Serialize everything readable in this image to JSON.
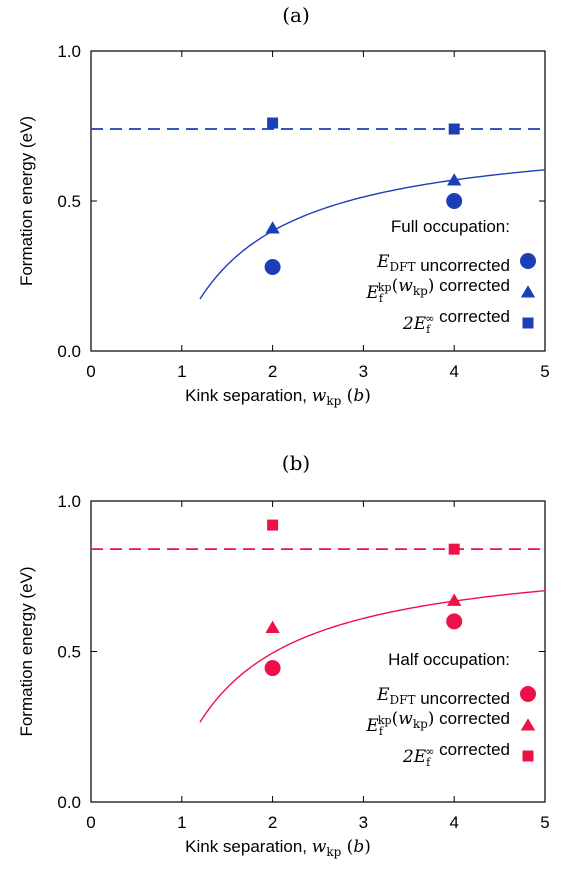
{
  "chart_data": [
    {
      "panel_label": "(a)",
      "type": "scatter",
      "xlabel": "Kink separation, ",
      "xlabel_var": "w",
      "xlabel_sub": "kp",
      "xlabel_unit": "b",
      "ylabel": "Formation energy (eV)",
      "xlim": [
        0,
        5
      ],
      "ylim": [
        0,
        1.0
      ],
      "xticks": [
        0,
        1,
        2,
        3,
        4,
        5
      ],
      "yticks": [
        0.0,
        0.5,
        1.0
      ],
      "xtick_labels": [
        "0",
        "1",
        "2",
        "3",
        "4",
        "5"
      ],
      "ytick_labels": [
        "0.0",
        "0.5",
        "1.0"
      ],
      "color": "#1c3fb8",
      "legend_title": "Full occupation:",
      "series": [
        {
          "name": "E_DFT uncorrected",
          "marker": "circle",
          "x": [
            2,
            4
          ],
          "y": [
            0.28,
            0.5
          ]
        },
        {
          "name": "E_f^kp(w_kp) corrected",
          "marker": "triangle",
          "x": [
            2,
            4
          ],
          "y": [
            0.41,
            0.57
          ]
        },
        {
          "name": "2E_f^∞ corrected",
          "marker": "square",
          "x": [
            2,
            4
          ],
          "y": [
            0.76,
            0.74
          ]
        }
      ],
      "fit_curve": {
        "x_start": 1.2,
        "x_end": 5,
        "asymptote": 0.74,
        "coefficient": 0.68
      },
      "reference_line": {
        "y": 0.74,
        "style": "dashed"
      },
      "legend": [
        {
          "sym": "E",
          "sub": "DFT",
          "sup": "",
          "paren": "",
          "suffix": " uncorrected",
          "marker": "circle"
        },
        {
          "sym": "E",
          "sub": "f",
          "sup": "kp",
          "paren": "w",
          "paren_sub": "kp",
          "suffix": " corrected",
          "marker": "triangle"
        },
        {
          "sym": "2E",
          "sub": "f",
          "sup": "∞",
          "paren": "",
          "suffix": " corrected",
          "marker": "square"
        }
      ]
    },
    {
      "panel_label": "(b)",
      "type": "scatter",
      "xlabel": "Kink separation, ",
      "xlabel_var": "w",
      "xlabel_sub": "kp",
      "xlabel_unit": "b",
      "ylabel": "Formation energy (eV)",
      "xlim": [
        0,
        5
      ],
      "ylim": [
        0,
        1.0
      ],
      "xticks": [
        0,
        1,
        2,
        3,
        4,
        5
      ],
      "yticks": [
        0.0,
        0.5,
        1.0
      ],
      "xtick_labels": [
        "0",
        "1",
        "2",
        "3",
        "4",
        "5"
      ],
      "ytick_labels": [
        "0.0",
        "0.5",
        "1.0"
      ],
      "color": "#ee1148",
      "legend_title": "Half occupation:",
      "series": [
        {
          "name": "E_DFT uncorrected",
          "marker": "circle",
          "x": [
            2,
            4
          ],
          "y": [
            0.445,
            0.6
          ]
        },
        {
          "name": "E_f^kp(w_kp) corrected",
          "marker": "triangle",
          "x": [
            2,
            4
          ],
          "y": [
            0.58,
            0.67
          ]
        },
        {
          "name": "2E_f^∞ corrected",
          "marker": "square",
          "x": [
            2,
            4
          ],
          "y": [
            0.92,
            0.84
          ]
        }
      ],
      "fit_curve": {
        "x_start": 1.2,
        "x_end": 5,
        "asymptote": 0.84,
        "coefficient": 0.69
      },
      "reference_line": {
        "y": 0.84,
        "style": "dashed"
      },
      "legend": [
        {
          "sym": "E",
          "sub": "DFT",
          "sup": "",
          "paren": "",
          "suffix": " uncorrected",
          "marker": "circle"
        },
        {
          "sym": "E",
          "sub": "f",
          "sup": "kp",
          "paren": "w",
          "paren_sub": "kp",
          "suffix": " corrected",
          "marker": "triangle"
        },
        {
          "sym": "2E",
          "sub": "f",
          "sup": "∞",
          "paren": "",
          "suffix": " corrected",
          "marker": "square"
        }
      ]
    }
  ]
}
